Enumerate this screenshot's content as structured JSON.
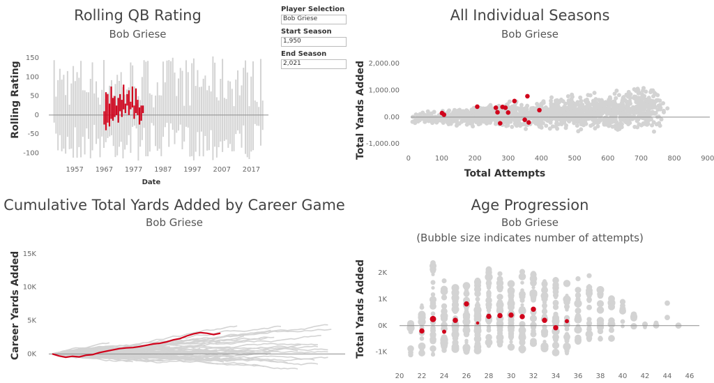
{
  "controls": {
    "player_label": "Player Selection",
    "player_value": "Bob Griese",
    "start_label": "Start Season",
    "start_value": "1,950",
    "end_label": "End Season",
    "end_value": "2,021"
  },
  "colors": {
    "highlight": "#d0021b",
    "background_series": "#d3d3d3",
    "zero_line": "#8c8c8c"
  },
  "chart_data": [
    {
      "type": "line",
      "title": "Rolling QB Rating",
      "subtitle": "Bob Griese",
      "xlabel": "Date",
      "ylabel": "Rolling Rating",
      "xlim": [
        1947,
        2024
      ],
      "ylim": [
        -125,
        165
      ],
      "xticks": [
        "1957",
        "1967",
        "1977",
        "1987",
        "1997",
        "2007",
        "2017"
      ],
      "yticks": [
        "150",
        "100",
        "50",
        "0",
        "-50",
        "-100"
      ],
      "highlight_x": [
        1967,
        1967.6,
        1968.2,
        1968.8,
        1969.4,
        1970,
        1970.6,
        1971.2,
        1971.8,
        1972.4,
        1973,
        1973.6,
        1974.2,
        1974.8,
        1975.4,
        1976,
        1976.6,
        1977.2,
        1977.8,
        1978.4,
        1979,
        1979.6,
        1980.2
      ],
      "highlight_low": [
        -25,
        -40,
        -20,
        -30,
        -10,
        -15,
        -5,
        0,
        -20,
        10,
        -5,
        15,
        5,
        25,
        0,
        15,
        20,
        -10,
        5,
        0,
        -25,
        -15,
        5
      ],
      "highlight_high": [
        10,
        60,
        55,
        30,
        75,
        45,
        50,
        25,
        45,
        55,
        40,
        80,
        30,
        55,
        65,
        35,
        75,
        25,
        70,
        40,
        20,
        25,
        25
      ]
    },
    {
      "type": "scatter",
      "title": "All Individual Seasons",
      "subtitle": "Bob Griese",
      "xlabel": "Total Attempts",
      "ylabel": "Total Yards Added",
      "xlim": [
        -10,
        890
      ],
      "ylim": [
        -1150,
        2550
      ],
      "xticks": [
        0,
        100,
        200,
        300,
        400,
        500,
        600,
        700,
        800,
        900
      ],
      "yticks": [
        "2,000.00",
        "1,000.00",
        "0.00",
        "-1,000.00"
      ],
      "points": [
        [
          101,
          150
        ],
        [
          107,
          90
        ],
        [
          207,
          390
        ],
        [
          263,
          350
        ],
        [
          268,
          180
        ],
        [
          276,
          -230
        ],
        [
          283,
          380
        ],
        [
          292,
          350
        ],
        [
          300,
          170
        ],
        [
          319,
          600
        ],
        [
          350,
          -100
        ],
        [
          358,
          780
        ],
        [
          362,
          -200
        ],
        [
          394,
          260
        ]
      ]
    },
    {
      "type": "line",
      "title": "Cumulative Total Yards Added by Career Game",
      "subtitle": "Bob Griese",
      "ylabel": "Career Yards Added",
      "ylim": [
        -3000,
        17500
      ],
      "yticks": [
        "15K",
        "10K",
        "5K",
        "0K"
      ],
      "highlight_series": [
        [
          0,
          0
        ],
        [
          10,
          -300
        ],
        [
          20,
          -500
        ],
        [
          30,
          -350
        ],
        [
          40,
          -450
        ],
        [
          50,
          -200
        ],
        [
          60,
          -100
        ],
        [
          70,
          200
        ],
        [
          80,
          400
        ],
        [
          90,
          600
        ],
        [
          100,
          800
        ],
        [
          110,
          900
        ],
        [
          120,
          950
        ],
        [
          130,
          1100
        ],
        [
          140,
          1300
        ],
        [
          150,
          1500
        ],
        [
          160,
          1600
        ],
        [
          170,
          1800
        ],
        [
          180,
          2100
        ],
        [
          190,
          2300
        ],
        [
          200,
          2700
        ],
        [
          210,
          3000
        ],
        [
          220,
          3200
        ],
        [
          230,
          3100
        ],
        [
          240,
          2900
        ],
        [
          250,
          3100
        ]
      ]
    },
    {
      "type": "scatter",
      "title": "Age Progression",
      "subtitle": "Bob Griese",
      "subtitle2": "(Bubble size indicates number of attempts)",
      "ylabel": "Total Yards Added",
      "xlim": [
        19.5,
        47
      ],
      "ylim": [
        -1350,
        2550
      ],
      "xticks": [
        20,
        22,
        24,
        26,
        28,
        30,
        32,
        34,
        36,
        38,
        40,
        42,
        44,
        46
      ],
      "yticks": [
        "2K",
        "1K",
        "0K",
        "-1K"
      ],
      "points": [
        [
          22,
          -200,
          5
        ],
        [
          23,
          250,
          6
        ],
        [
          24,
          -230,
          4
        ],
        [
          25,
          200,
          5
        ],
        [
          26,
          820,
          5
        ],
        [
          27,
          100,
          3
        ],
        [
          28,
          350,
          5
        ],
        [
          29,
          380,
          5
        ],
        [
          30,
          400,
          5
        ],
        [
          31,
          340,
          5
        ],
        [
          32,
          620,
          5
        ],
        [
          33,
          200,
          5
        ],
        [
          34,
          -80,
          5
        ],
        [
          35,
          170,
          4
        ]
      ]
    }
  ]
}
